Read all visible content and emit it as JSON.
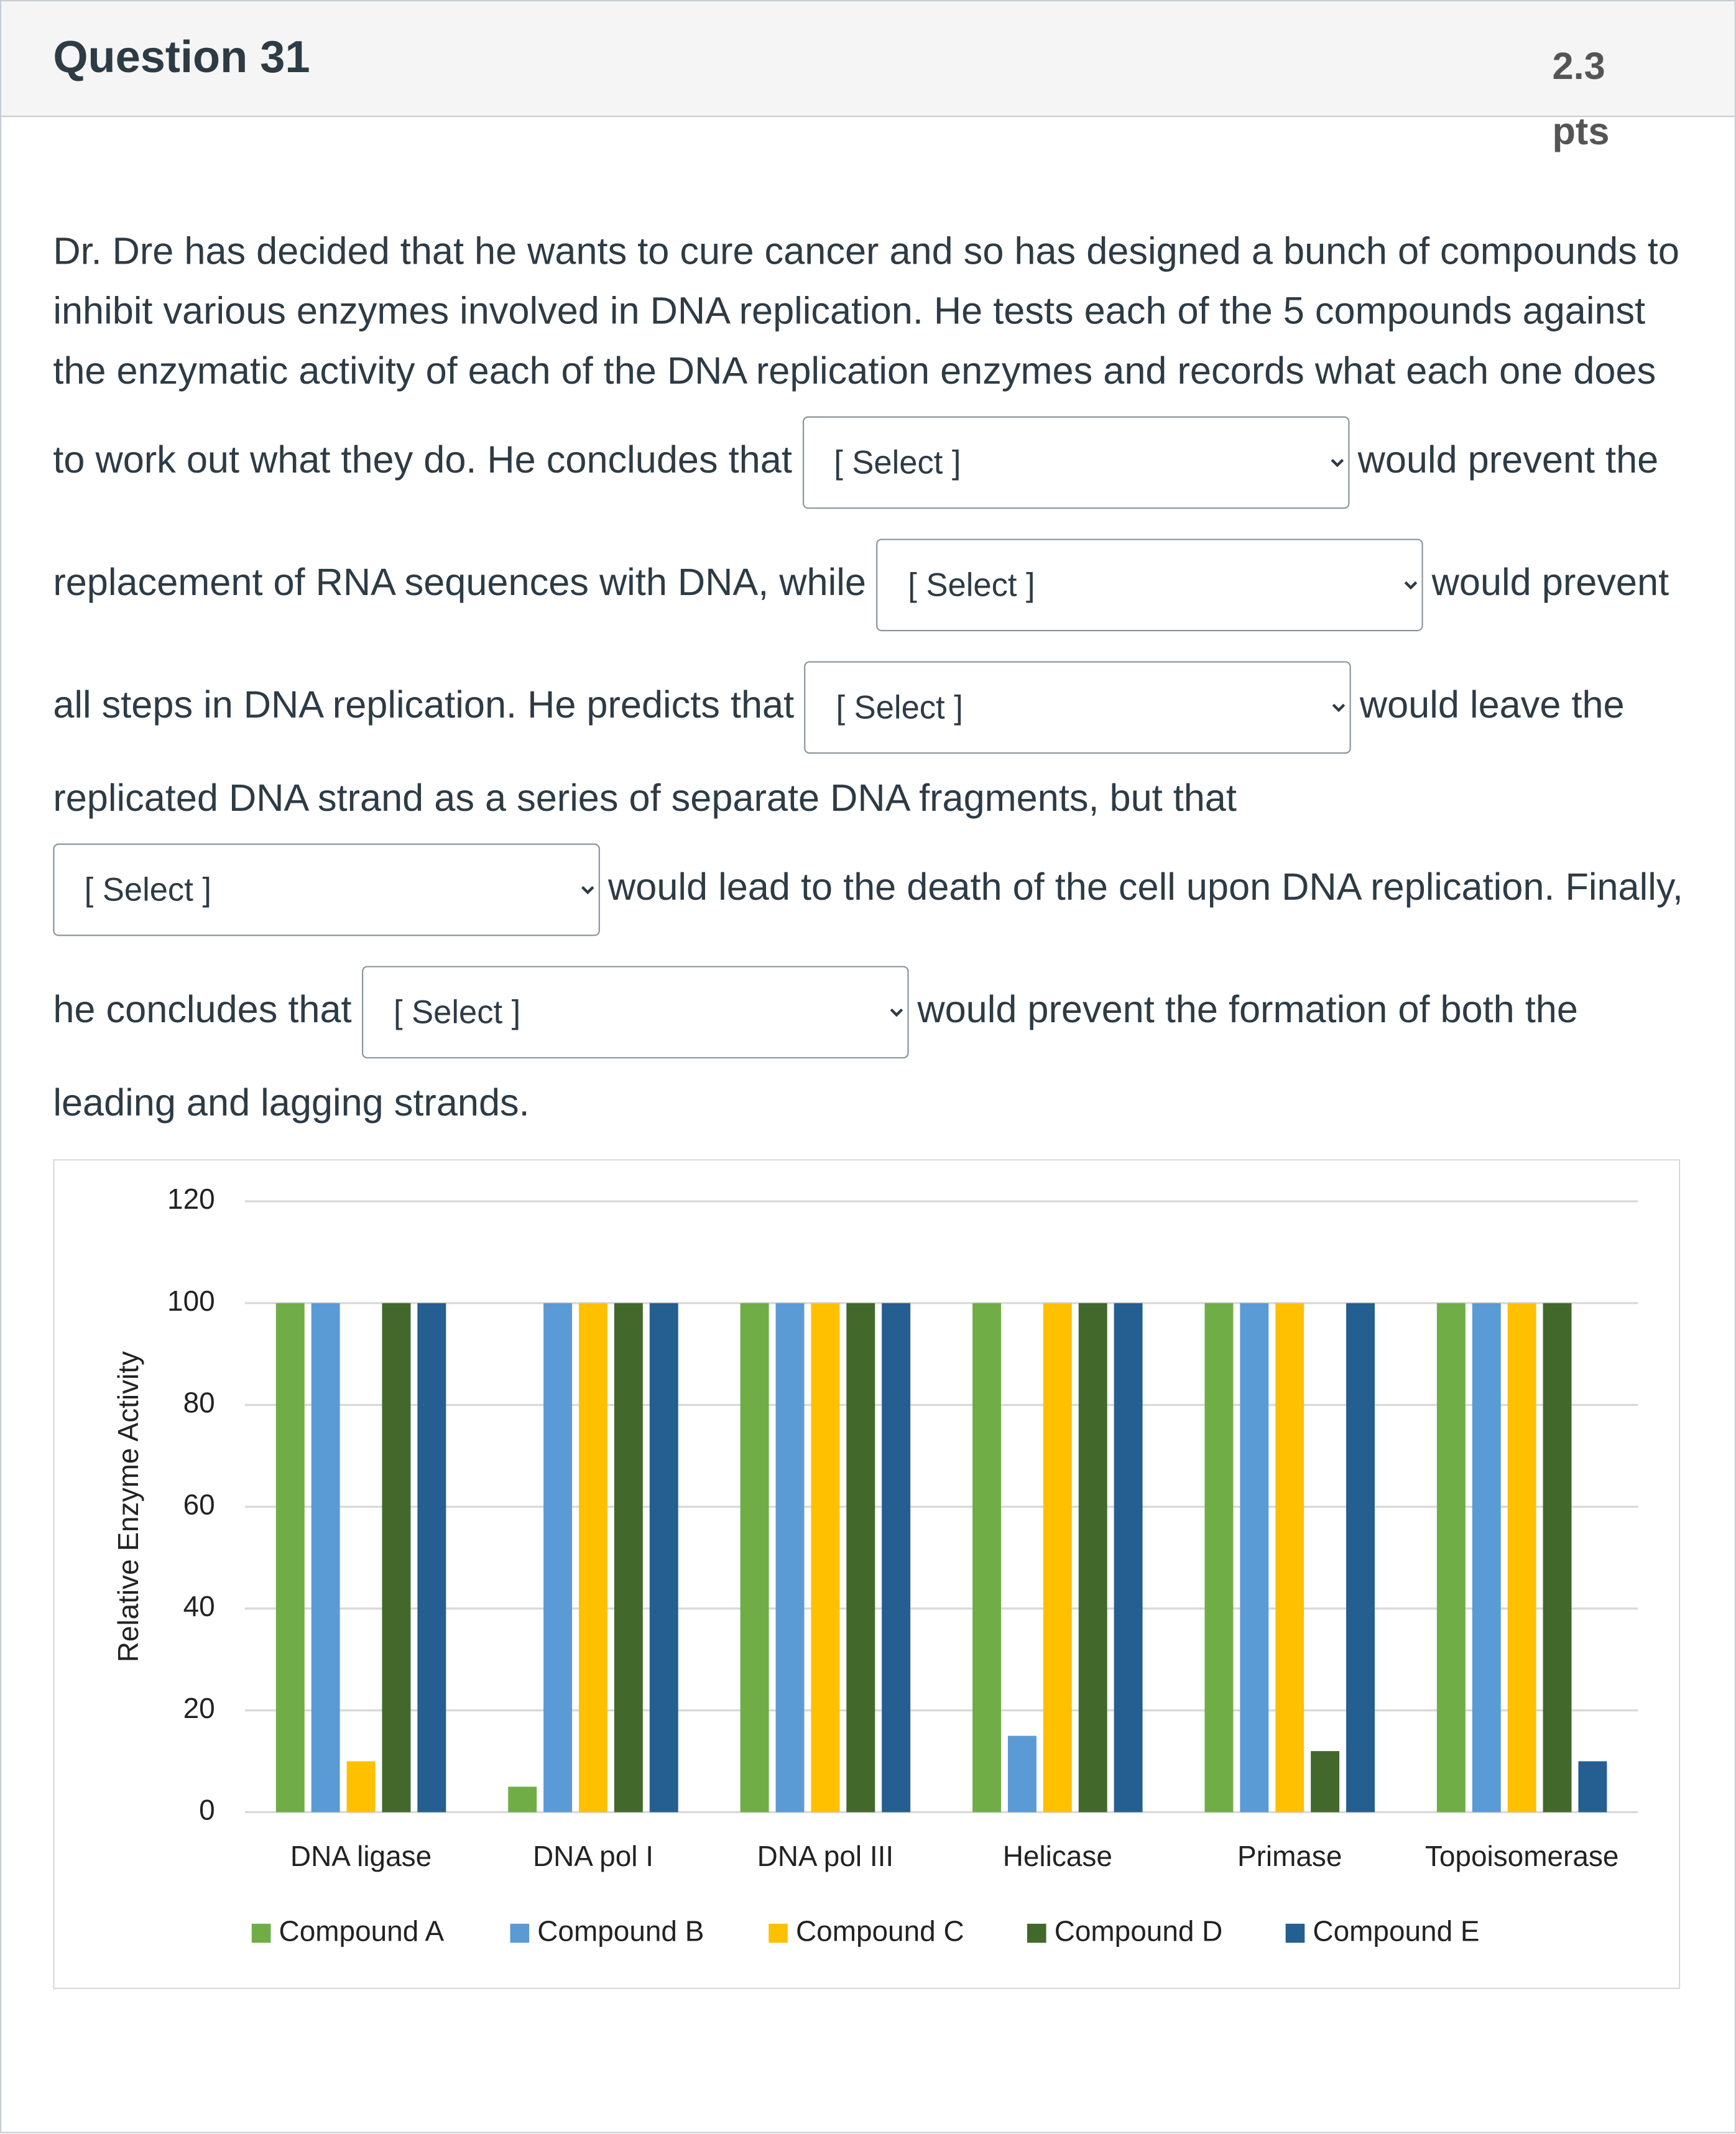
{
  "question": {
    "title": "Question 31",
    "points": "2.3 pts",
    "segments": [
      "Dr. Dre has decided that he wants to cure cancer and so has designed a bunch of compounds to inhibit various enzymes involved in DNA replication. He tests each of the 5 compounds against the enzymatic activity of each of the DNA replication enzymes and records what each one does to work out what they do. He concludes that",
      "would prevent the replacement of RNA sequences with DNA, while",
      "would prevent all steps in DNA replication. He predicts that",
      "would leave the replicated DNA strand as a series of separate DNA fragments, but that",
      "would lead to the death of the cell upon DNA replication. Finally, he concludes that",
      "would prevent the formation of both the leading and lagging strands."
    ],
    "selects": [
      "[ Select ]",
      "[ Select ]",
      "[ Select ]",
      "[ Select ]",
      "[ Select ]"
    ]
  },
  "chart_data": {
    "type": "bar",
    "y_label": "Relative Enzyme Activity",
    "categories": [
      "DNA ligase",
      "DNA pol I",
      "DNA pol III",
      "Helicase",
      "Primase",
      "Topoisomerase"
    ],
    "series": [
      {
        "name": "Compound A",
        "color": "#70ad47",
        "values": [
          100,
          5,
          100,
          100,
          100,
          100
        ]
      },
      {
        "name": "Compound B",
        "color": "#5b9bd5",
        "values": [
          100,
          100,
          100,
          15,
          100,
          100
        ]
      },
      {
        "name": "Compound C",
        "color": "#ffc000",
        "values": [
          10,
          100,
          100,
          100,
          100,
          100
        ]
      },
      {
        "name": "Compound D",
        "color": "#43682b",
        "values": [
          100,
          100,
          100,
          100,
          12,
          100
        ]
      },
      {
        "name": "Compound E",
        "color": "#255e91",
        "values": [
          100,
          100,
          100,
          100,
          100,
          10
        ]
      }
    ],
    "ylim": [
      0,
      120
    ],
    "yticks": [
      0,
      20,
      40,
      60,
      80,
      100,
      120
    ],
    "grid": true,
    "legend": "bottom"
  }
}
